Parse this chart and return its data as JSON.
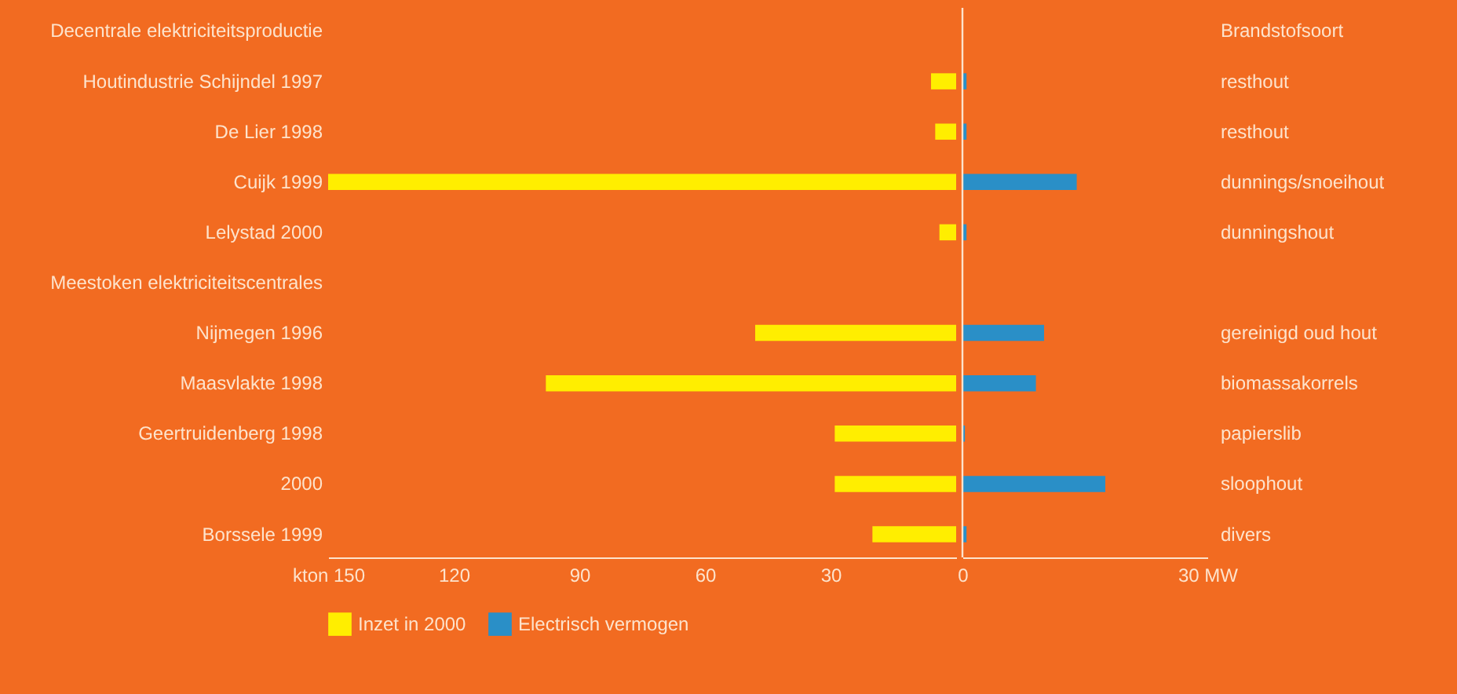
{
  "chart_data": [
    {
      "type": "bar",
      "orientation": "horizontal",
      "categories": [
        "Decentrale elektriciteitsproductie",
        "Houtindustrie Schijndel 1997",
        "De Lier 1998",
        "Cuijk 1999",
        "Lelystad 2000",
        "Meestoken elektriciteitscentrales",
        "Nijmegen 1996",
        "Maasvlakte 1998",
        "Geertruidenberg 1998",
        "2000",
        "Borssele 1999"
      ],
      "series": [
        {
          "name": "Inzet in 2000",
          "color": "#ffee00",
          "values": [
            null,
            6,
            5,
            150,
            4,
            null,
            48,
            98,
            29,
            29,
            20
          ]
        }
      ],
      "xlim": [
        150,
        0
      ],
      "xticks": [
        {
          "value": 150,
          "label": "kton 150"
        },
        120,
        90,
        60,
        30
      ],
      "legend": "bottom"
    },
    {
      "type": "bar",
      "orientation": "horizontal",
      "categories": [
        "Brandstofsoort",
        "resthout",
        "resthout",
        "dunnings/snoeihout",
        "dunningshout",
        null,
        "gereinigd oud hout",
        "biomassakorrels",
        "papierslib",
        "sloophout",
        "divers"
      ],
      "series": [
        {
          "name": "Electrisch vermogen",
          "color": "#2a8fc7",
          "values": [
            null,
            0.5,
            0.5,
            14,
            0.5,
            null,
            10,
            9,
            0.3,
            17.5,
            0.5
          ]
        }
      ],
      "xlim": [
        0,
        30
      ],
      "xticks": [
        0,
        {
          "value": 30,
          "label": "30 MW"
        }
      ],
      "ref_lines": [
        {
          "axis": "x",
          "value": 0
        }
      ]
    }
  ]
}
